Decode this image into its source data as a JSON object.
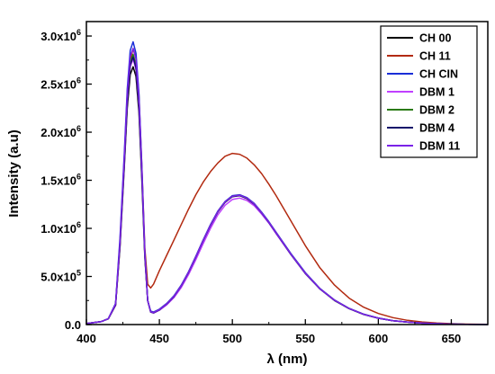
{
  "chart_data": {
    "type": "line",
    "xlabel": "λ (nm)",
    "ylabel": "Intensity (a.u)",
    "xlim": [
      400,
      675
    ],
    "ylim": [
      0,
      3150000.0
    ],
    "x_ticks": [
      400,
      450,
      500,
      550,
      600,
      650
    ],
    "x_tick_labels": [
      "400",
      "450",
      "500",
      "550",
      "600",
      "650"
    ],
    "y_ticks": [
      0,
      500000,
      1000000,
      1500000,
      2000000,
      2500000,
      3000000
    ],
    "y_tick_labels": [
      {
        "mantissa": "0.0",
        "exp": ""
      },
      {
        "mantissa": "5.0x10",
        "exp": "5"
      },
      {
        "mantissa": "1.0x10",
        "exp": "6"
      },
      {
        "mantissa": "1.5x10",
        "exp": "6"
      },
      {
        "mantissa": "2.0x10",
        "exp": "6"
      },
      {
        "mantissa": "2.5x10",
        "exp": "6"
      },
      {
        "mantissa": "3.0x10",
        "exp": "6"
      }
    ],
    "grid": false,
    "legend_position": "top-right",
    "x": [
      400,
      410,
      415,
      420,
      423,
      426,
      428,
      430,
      432,
      434,
      436,
      438,
      440,
      442,
      444,
      446,
      450,
      455,
      460,
      465,
      470,
      475,
      480,
      485,
      490,
      495,
      500,
      505,
      510,
      515,
      520,
      525,
      530,
      540,
      550,
      560,
      570,
      580,
      590,
      600,
      610,
      620,
      630,
      640,
      650,
      660,
      675
    ],
    "series": [
      {
        "name": "CH 00",
        "color": "#000000",
        "values": [
          10000,
          30000,
          60000,
          200000,
          800000,
          1650000,
          2250000,
          2600000,
          2680000,
          2580000,
          2200000,
          1500000,
          700000,
          250000,
          130000,
          120000,
          150000,
          210000,
          290000,
          400000,
          540000,
          700000,
          870000,
          1030000,
          1170000,
          1270000,
          1330000,
          1340000,
          1310000,
          1250000,
          1160000,
          1060000,
          950000,
          730000,
          530000,
          370000,
          250000,
          165000,
          105000,
          65000,
          40000,
          25000,
          15000,
          9000,
          5000,
          3000,
          1000
        ]
      },
      {
        "name": "CH 11",
        "color": "#b22a10",
        "values": [
          10000,
          30000,
          60000,
          200000,
          820000,
          1700000,
          2350000,
          2750000,
          2870000,
          2770000,
          2380000,
          1650000,
          800000,
          420000,
          380000,
          420000,
          560000,
          720000,
          880000,
          1040000,
          1200000,
          1350000,
          1480000,
          1590000,
          1680000,
          1750000,
          1780000,
          1770000,
          1730000,
          1660000,
          1570000,
          1460000,
          1340000,
          1080000,
          820000,
          590000,
          410000,
          275000,
          180000,
          115000,
          72000,
          44000,
          27000,
          16000,
          9000,
          5000,
          2000
        ]
      },
      {
        "name": "CH CIN",
        "color": "#1a2ed8",
        "values": [
          10000,
          30000,
          60000,
          220000,
          900000,
          1800000,
          2450000,
          2850000,
          2940000,
          2820000,
          2400000,
          1650000,
          760000,
          250000,
          140000,
          130000,
          160000,
          220000,
          300000,
          410000,
          550000,
          710000,
          880000,
          1040000,
          1180000,
          1280000,
          1340000,
          1350000,
          1320000,
          1260000,
          1170000,
          1070000,
          960000,
          740000,
          540000,
          375000,
          255000,
          168000,
          108000,
          67000,
          41000,
          25000,
          15000,
          9000,
          5000,
          3000,
          1000
        ]
      },
      {
        "name": "DBM 1",
        "color": "#c040ff",
        "values": [
          10000,
          30000,
          60000,
          200000,
          820000,
          1680000,
          2300000,
          2680000,
          2760000,
          2650000,
          2260000,
          1550000,
          720000,
          250000,
          130000,
          120000,
          150000,
          205000,
          280000,
          385000,
          520000,
          675000,
          840000,
          1000000,
          1140000,
          1240000,
          1300000,
          1315000,
          1290000,
          1235000,
          1150000,
          1055000,
          945000,
          730000,
          530000,
          370000,
          252000,
          166000,
          106000,
          66000,
          40000,
          25000,
          15000,
          9000,
          5000,
          3000,
          1000
        ]
      },
      {
        "name": "DBM 2",
        "color": "#2a7a14",
        "values": [
          10000,
          30000,
          60000,
          210000,
          840000,
          1720000,
          2350000,
          2730000,
          2810000,
          2700000,
          2300000,
          1580000,
          730000,
          250000,
          135000,
          125000,
          155000,
          215000,
          295000,
          405000,
          545000,
          705000,
          875000,
          1035000,
          1175000,
          1275000,
          1335000,
          1345000,
          1315000,
          1255000,
          1165000,
          1065000,
          955000,
          735000,
          535000,
          372000,
          253000,
          167000,
          107000,
          66000,
          40000,
          25000,
          15000,
          9000,
          5000,
          3000,
          1000
        ]
      },
      {
        "name": "DBM 4",
        "color": "#10106a",
        "values": [
          10000,
          30000,
          60000,
          205000,
          830000,
          1700000,
          2320000,
          2700000,
          2780000,
          2670000,
          2280000,
          1560000,
          725000,
          250000,
          132000,
          122000,
          152000,
          212000,
          292000,
          402000,
          542000,
          702000,
          872000,
          1032000,
          1172000,
          1272000,
          1332000,
          1342000,
          1312000,
          1252000,
          1162000,
          1062000,
          952000,
          732000,
          532000,
          371000,
          252000,
          166000,
          106000,
          66000,
          40000,
          25000,
          15000,
          9000,
          5000,
          3000,
          1000
        ]
      },
      {
        "name": "DBM 11",
        "color": "#7a22e8",
        "values": [
          10000,
          30000,
          60000,
          215000,
          860000,
          1760000,
          2400000,
          2790000,
          2870000,
          2760000,
          2350000,
          1620000,
          745000,
          250000,
          135000,
          125000,
          155000,
          215000,
          295000,
          405000,
          545000,
          705000,
          875000,
          1035000,
          1175000,
          1275000,
          1335000,
          1345000,
          1315000,
          1255000,
          1165000,
          1065000,
          955000,
          735000,
          535000,
          372000,
          253000,
          167000,
          107000,
          66000,
          40000,
          25000,
          15000,
          9000,
          5000,
          3000,
          1000
        ]
      }
    ]
  }
}
